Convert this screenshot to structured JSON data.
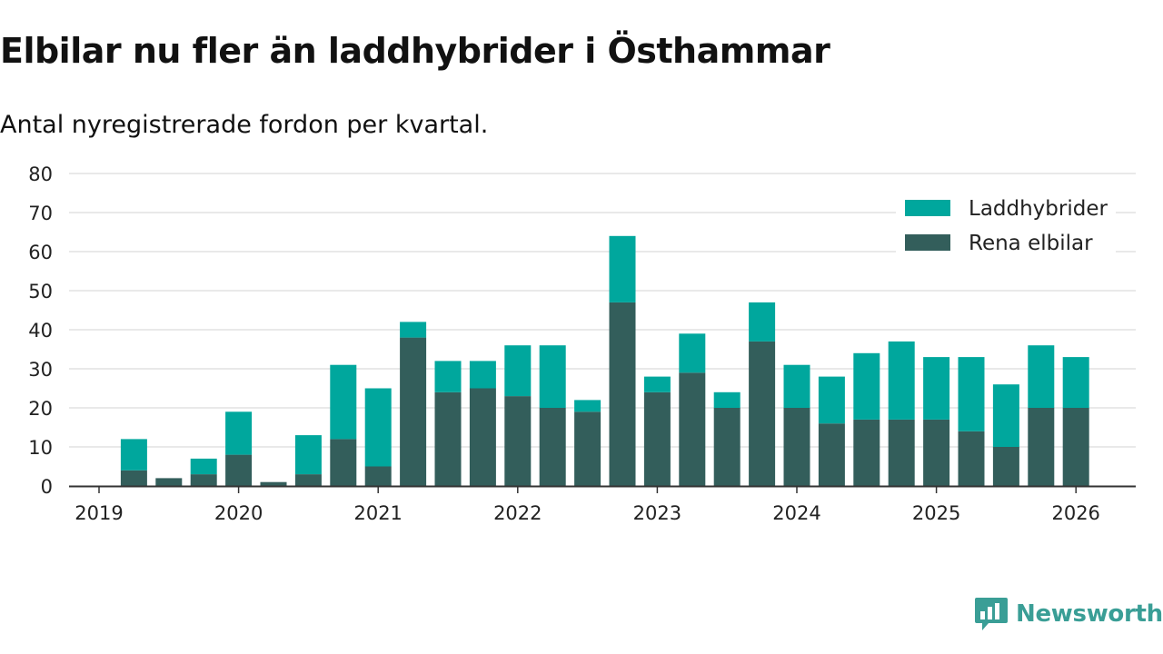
{
  "title": "Elbilar nu fler än laddhybrider i Östhammar",
  "subtitle": "Antal nyregistrerade fordon per kvartal.",
  "brand": {
    "name": "Newsworthy",
    "color": "#3a9e96"
  },
  "chart_data": {
    "type": "bar",
    "stacked": true,
    "x_tick_labels": [
      "2019",
      "2020",
      "2021",
      "2022",
      "2023",
      "2024",
      "2025",
      "2026"
    ],
    "categories": [
      "2019 Q1",
      "2019 Q2",
      "2019 Q3",
      "2019 Q4",
      "2020 Q1",
      "2020 Q2",
      "2020 Q3",
      "2020 Q4",
      "2021 Q1",
      "2021 Q2",
      "2021 Q3",
      "2021 Q4",
      "2022 Q1",
      "2022 Q2",
      "2022 Q3",
      "2022 Q4",
      "2023 Q1",
      "2023 Q2",
      "2023 Q3",
      "2023 Q4",
      "2024 Q1",
      "2024 Q2",
      "2024 Q3",
      "2024 Q4",
      "2025 Q1",
      "2025 Q2",
      "2025 Q3",
      "2025 Q4",
      "2026 Q1"
    ],
    "series": [
      {
        "name": "Rena elbilar",
        "color": "#335e5b",
        "values": [
          0,
          4,
          2,
          3,
          8,
          1,
          3,
          12,
          5,
          38,
          24,
          25,
          23,
          20,
          19,
          47,
          24,
          29,
          20,
          37,
          20,
          16,
          17,
          17,
          17,
          14,
          10,
          20,
          20
        ]
      },
      {
        "name": "Laddhybrider",
        "color": "#00a79d",
        "values": [
          0,
          8,
          0,
          4,
          11,
          0,
          10,
          19,
          20,
          4,
          8,
          7,
          13,
          16,
          3,
          17,
          4,
          10,
          4,
          10,
          11,
          12,
          17,
          20,
          16,
          19,
          16,
          16,
          13
        ]
      }
    ],
    "legend": [
      "Laddhybrider",
      "Rena elbilar"
    ],
    "legend_position": "top-right",
    "ylim": [
      0,
      80
    ],
    "yticks": [
      0,
      10,
      20,
      30,
      40,
      50,
      60,
      70,
      80
    ],
    "grid": true,
    "xlabel": "",
    "ylabel": ""
  }
}
